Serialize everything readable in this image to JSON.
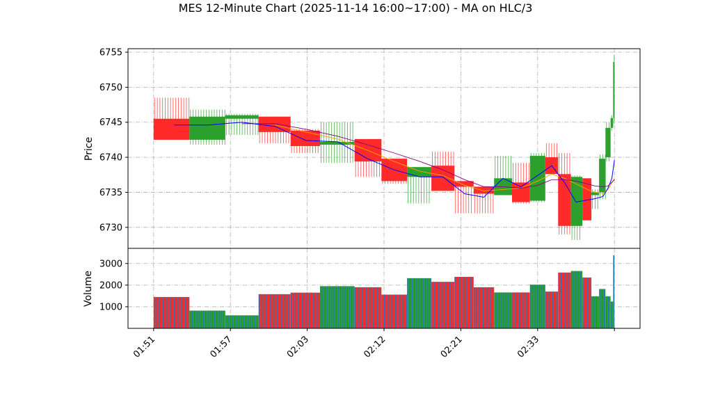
{
  "chart_data": {
    "type": "candlestick",
    "title": "MES 12-Minute Chart (2025-11-14 16:00~17:00) - MA on HLC/3",
    "price_panel": {
      "ylabel": "Price",
      "ylim": [
        6727,
        6755.5
      ],
      "yticks": [
        6730,
        6735,
        6740,
        6745,
        6750,
        6755
      ]
    },
    "volume_panel": {
      "ylabel": "Volume",
      "ylim": [
        0,
        3700
      ],
      "yticks": [
        1000,
        2000,
        3000
      ]
    },
    "xticks": [
      {
        "label": "01:51",
        "x": 0
      },
      {
        "label": "01:57",
        "x": 6
      },
      {
        "label": "02:03",
        "x": 12
      },
      {
        "label": "02:12",
        "x": 18
      },
      {
        "label": "02:21",
        "x": 24
      },
      {
        "label": "02:33",
        "x": 30
      },
      {
        "label": "",
        "x": 36
      }
    ],
    "xlim": [
      -2,
      38
    ],
    "grid": true,
    "colors": {
      "up": "#2ca02c",
      "down": "#ff2b2b",
      "ma_hlc3": "#0000ff",
      "ma_slow": "#800080",
      "ma_orange": "#ffa500",
      "volume_bar": "#1f77b4"
    },
    "candles": [
      {
        "x0": 0,
        "x1": 2.8,
        "open": 6745.5,
        "high": 6748.5,
        "low": 6742.5,
        "close": 6742.5,
        "volume": 1450
      },
      {
        "x0": 2.8,
        "x1": 5.6,
        "open": 6742.5,
        "high": 6746.8,
        "low": 6741.8,
        "close": 6745.8,
        "volume": 820
      },
      {
        "x0": 5.6,
        "x1": 8.2,
        "open": 6745.5,
        "high": 6746.2,
        "low": 6743.2,
        "close": 6746.0,
        "volume": 600
      },
      {
        "x0": 8.2,
        "x1": 10.7,
        "open": 6745.8,
        "high": 6745.8,
        "low": 6742.0,
        "close": 6743.6,
        "volume": 1580
      },
      {
        "x0": 10.7,
        "x1": 13.0,
        "open": 6743.8,
        "high": 6744.0,
        "low": 6740.6,
        "close": 6741.6,
        "volume": 1650
      },
      {
        "x0": 13.0,
        "x1": 15.7,
        "open": 6741.8,
        "high": 6745.0,
        "low": 6739.2,
        "close": 6742.2,
        "volume": 1950
      },
      {
        "x0": 15.7,
        "x1": 17.8,
        "open": 6742.6,
        "high": 6742.6,
        "low": 6737.2,
        "close": 6739.4,
        "volume": 1900
      },
      {
        "x0": 17.8,
        "x1": 19.8,
        "open": 6739.8,
        "high": 6739.8,
        "low": 6736.2,
        "close": 6736.6,
        "volume": 1560
      },
      {
        "x0": 19.8,
        "x1": 21.7,
        "open": 6737.2,
        "high": 6738.6,
        "low": 6733.4,
        "close": 6738.6,
        "volume": 2320
      },
      {
        "x0": 21.7,
        "x1": 23.5,
        "open": 6738.8,
        "high": 6740.8,
        "low": 6735.2,
        "close": 6735.2,
        "volume": 2150
      },
      {
        "x0": 23.5,
        "x1": 25.0,
        "open": 6736.6,
        "high": 6736.6,
        "low": 6732.0,
        "close": 6735.8,
        "volume": 2380
      },
      {
        "x0": 25.0,
        "x1": 26.6,
        "open": 6735.8,
        "high": 6735.8,
        "low": 6732.0,
        "close": 6734.8,
        "volume": 1900
      },
      {
        "x0": 26.6,
        "x1": 28.0,
        "open": 6734.6,
        "high": 6740.2,
        "low": 6734.6,
        "close": 6737.0,
        "volume": 1660
      },
      {
        "x0": 28.0,
        "x1": 29.4,
        "open": 6736.4,
        "high": 6739.2,
        "low": 6733.4,
        "close": 6733.6,
        "volume": 1660
      },
      {
        "x0": 29.4,
        "x1": 30.6,
        "open": 6733.8,
        "high": 6740.6,
        "low": 6733.6,
        "close": 6740.2,
        "volume": 2020
      },
      {
        "x0": 30.6,
        "x1": 31.6,
        "open": 6740.0,
        "high": 6742.0,
        "low": 6737.6,
        "close": 6737.6,
        "volume": 1700
      },
      {
        "x0": 31.6,
        "x1": 32.6,
        "open": 6737.6,
        "high": 6740.6,
        "low": 6729.0,
        "close": 6730.2,
        "volume": 2580
      },
      {
        "x0": 32.6,
        "x1": 33.5,
        "open": 6730.2,
        "high": 6737.4,
        "low": 6728.2,
        "close": 6737.2,
        "volume": 2650
      },
      {
        "x0": 33.5,
        "x1": 34.2,
        "open": 6737.0,
        "high": 6737.0,
        "low": 6731.0,
        "close": 6731.0,
        "volume": 2350
      },
      {
        "x0": 34.2,
        "x1": 34.8,
        "open": 6734.6,
        "high": 6735.4,
        "low": 6732.6,
        "close": 6735.0,
        "volume": 1480
      },
      {
        "x0": 34.8,
        "x1": 35.3,
        "open": 6735.0,
        "high": 6740.4,
        "low": 6734.0,
        "close": 6739.8,
        "volume": 1820
      },
      {
        "x0": 35.3,
        "x1": 35.7,
        "open": 6740.0,
        "high": 6745.0,
        "low": 6739.4,
        "close": 6744.2,
        "volume": 1480
      },
      {
        "x0": 35.7,
        "x1": 35.9,
        "open": 6744.2,
        "high": 6746.0,
        "low": 6743.8,
        "close": 6745.6,
        "volume": 1240
      },
      {
        "x0": 35.9,
        "x1": 36.0,
        "open": 6745.6,
        "high": 6754.6,
        "low": 6744.8,
        "close": 6753.6,
        "volume": 3380
      }
    ],
    "ma_hlc3": [
      {
        "x": 1.6,
        "y": 6744.6
      },
      {
        "x": 4.2,
        "y": 6744.6
      },
      {
        "x": 6.9,
        "y": 6745.0
      },
      {
        "x": 9.5,
        "y": 6744.4
      },
      {
        "x": 11.9,
        "y": 6742.4
      },
      {
        "x": 14.4,
        "y": 6742.2
      },
      {
        "x": 16.7,
        "y": 6739.8
      },
      {
        "x": 18.8,
        "y": 6738.2
      },
      {
        "x": 20.8,
        "y": 6737.2
      },
      {
        "x": 22.6,
        "y": 6737.2
      },
      {
        "x": 24.3,
        "y": 6734.8
      },
      {
        "x": 25.8,
        "y": 6734.3
      },
      {
        "x": 27.3,
        "y": 6737.0
      },
      {
        "x": 28.7,
        "y": 6735.8
      },
      {
        "x": 30.0,
        "y": 6737.4
      },
      {
        "x": 31.1,
        "y": 6738.8
      },
      {
        "x": 32.1,
        "y": 6736.4
      },
      {
        "x": 33.0,
        "y": 6733.6
      },
      {
        "x": 33.9,
        "y": 6733.9
      },
      {
        "x": 34.5,
        "y": 6734.1
      },
      {
        "x": 35.1,
        "y": 6734.4
      },
      {
        "x": 35.5,
        "y": 6735.6
      },
      {
        "x": 35.8,
        "y": 6737.0
      },
      {
        "x": 36.0,
        "y": 6739.6
      }
    ],
    "ma_slow": [
      {
        "x": 6.9,
        "y": 6744.8
      },
      {
        "x": 9.5,
        "y": 6744.8
      },
      {
        "x": 11.9,
        "y": 6744.0
      },
      {
        "x": 14.4,
        "y": 6743.0
      },
      {
        "x": 16.7,
        "y": 6741.8
      },
      {
        "x": 18.8,
        "y": 6740.6
      },
      {
        "x": 20.8,
        "y": 6739.4
      },
      {
        "x": 22.6,
        "y": 6738.2
      },
      {
        "x": 24.3,
        "y": 6736.8
      },
      {
        "x": 25.8,
        "y": 6735.8
      },
      {
        "x": 27.3,
        "y": 6735.8
      },
      {
        "x": 28.7,
        "y": 6735.6
      },
      {
        "x": 30.0,
        "y": 6736.0
      },
      {
        "x": 31.1,
        "y": 6736.8
      },
      {
        "x": 32.1,
        "y": 6736.8
      },
      {
        "x": 33.0,
        "y": 6736.6
      },
      {
        "x": 33.9,
        "y": 6736.2
      },
      {
        "x": 34.5,
        "y": 6735.9
      },
      {
        "x": 35.1,
        "y": 6735.8
      },
      {
        "x": 35.5,
        "y": 6735.9
      },
      {
        "x": 36.0,
        "y": 6736.8
      }
    ],
    "ma_orange": [
      {
        "x": 9.5,
        "y": 6744.6
      },
      {
        "x": 11.9,
        "y": 6743.6
      },
      {
        "x": 14.4,
        "y": 6742.6
      },
      {
        "x": 16.7,
        "y": 6741.0
      },
      {
        "x": 18.8,
        "y": 6739.4
      },
      {
        "x": 20.8,
        "y": 6738.0
      },
      {
        "x": 22.6,
        "y": 6737.4
      },
      {
        "x": 24.3,
        "y": 6736.0
      },
      {
        "x": 25.8,
        "y": 6735.2
      },
      {
        "x": 27.3,
        "y": 6735.4
      },
      {
        "x": 28.7,
        "y": 6735.6
      },
      {
        "x": 30.0,
        "y": 6736.6
      },
      {
        "x": 31.1,
        "y": 6737.6
      },
      {
        "x": 32.1,
        "y": 6737.0
      },
      {
        "x": 33.0,
        "y": 6736.2
      },
      {
        "x": 33.9,
        "y": 6735.4
      },
      {
        "x": 34.5,
        "y": 6735.0
      },
      {
        "x": 35.1,
        "y": 6734.8
      },
      {
        "x": 35.5,
        "y": 6735.4
      },
      {
        "x": 36.0,
        "y": 6737.0
      }
    ]
  }
}
